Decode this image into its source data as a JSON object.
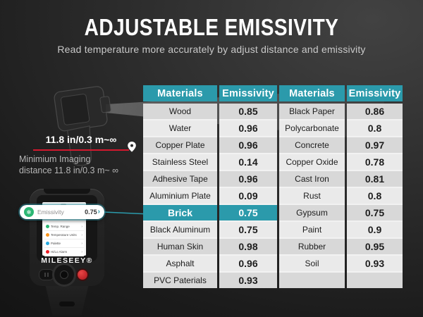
{
  "header": {
    "title": "ADJUSTABLE EMISSIVITY",
    "subtitle": "Read temperature more accurately by adjust distance and emissivity"
  },
  "diagram": {
    "distance_label": "11.8 in/0.3 m~∞",
    "caption_line1": "Minimium Imaging",
    "caption_line2": "distance 11.8 in/0.3 m~ ∞"
  },
  "device": {
    "brand": "MILESEEY®",
    "popup": {
      "icon_glyph": "✻",
      "label": "Emissivity",
      "value": "0.75",
      "chevron": "›"
    },
    "menu_chevron": "›",
    "menu_items": [
      {
        "label": "Temp. Range",
        "color": "#2bb673"
      },
      {
        "label": "Temperature Units",
        "color": "#f7941d"
      },
      {
        "label": "Palette",
        "color": "#27aae1"
      },
      {
        "label": "Hi/Lo Alarm",
        "color": "#ed1c24"
      }
    ]
  },
  "table": {
    "headers": [
      "Materials",
      "Emissivity",
      "Materials",
      "Emissivity"
    ],
    "rows": [
      {
        "m1": "Wood",
        "e1": "0.85",
        "m2": "Black Paper",
        "e2": "0.86",
        "highlighted": false
      },
      {
        "m1": "Water",
        "e1": "0.96",
        "m2": "Polycarbonate",
        "e2": "0.8",
        "highlighted": false
      },
      {
        "m1": "Copper Plate",
        "e1": "0.96",
        "m2": "Concrete",
        "e2": "0.97",
        "highlighted": false
      },
      {
        "m1": "Stainless Steel",
        "e1": "0.14",
        "m2": "Copper Oxide",
        "e2": "0.78",
        "highlighted": false
      },
      {
        "m1": "Adhesive Tape",
        "e1": "0.96",
        "m2": "Cast Iron",
        "e2": "0.81",
        "highlighted": false
      },
      {
        "m1": "Aluminium Plate",
        "e1": "0.09",
        "m2": "Rust",
        "e2": "0.8",
        "highlighted": false
      },
      {
        "m1": "Brick",
        "e1": "0.75",
        "m2": "Gypsum",
        "e2": "0.75",
        "highlighted": true
      },
      {
        "m1": "Black Aluminum",
        "e1": "0.75",
        "m2": "Paint",
        "e2": "0.9",
        "highlighted": false
      },
      {
        "m1": "Human Skin",
        "e1": "0.98",
        "m2": "Rubber",
        "e2": "0.95",
        "highlighted": false
      },
      {
        "m1": "Asphalt",
        "e1": "0.96",
        "m2": "Soil",
        "e2": "0.93",
        "highlighted": false
      },
      {
        "m1": "PVC Paterials",
        "e1": "0.93",
        "m2": "",
        "e2": "",
        "highlighted": false
      }
    ]
  },
  "colors": {
    "accent_teal": "#2b9aab",
    "red_line": "#d4182e",
    "row_dark": "#d8d8d8",
    "row_light": "#eaeaea",
    "popup_green": "#2bb673"
  }
}
